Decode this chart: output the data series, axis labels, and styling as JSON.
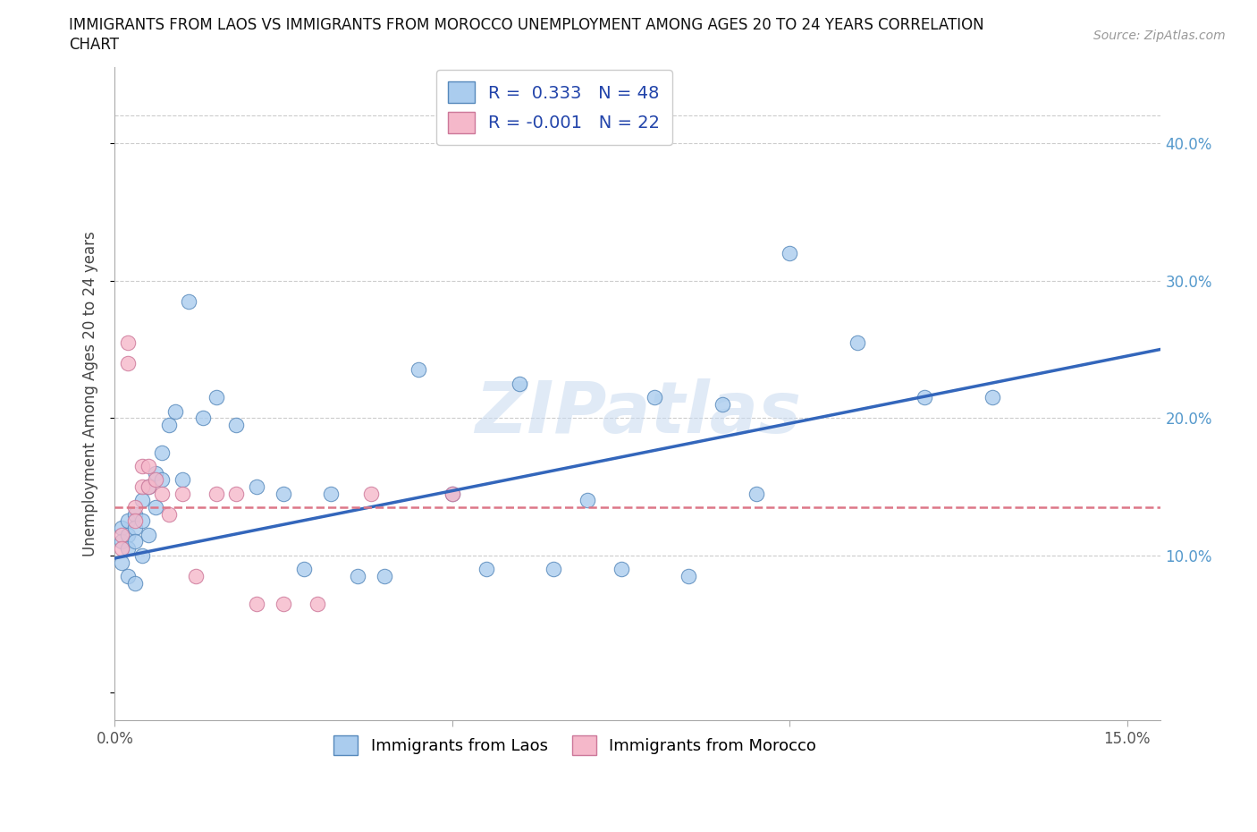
{
  "title_line1": "IMMIGRANTS FROM LAOS VS IMMIGRANTS FROM MOROCCO UNEMPLOYMENT AMONG AGES 20 TO 24 YEARS CORRELATION",
  "title_line2": "CHART",
  "source": "Source: ZipAtlas.com",
  "ylabel": "Unemployment Among Ages 20 to 24 years",
  "legend_label1": "Immigrants from Laos",
  "legend_label2": "Immigrants from Morocco",
  "R1": "0.333",
  "N1": "48",
  "R2": "-0.001",
  "N2": "22",
  "xlim": [
    0.0,
    0.155
  ],
  "ylim": [
    -0.02,
    0.455
  ],
  "xtick_positions": [
    0.0,
    0.05,
    0.1,
    0.15
  ],
  "xtick_labels": [
    "0.0%",
    "",
    "",
    "15.0%"
  ],
  "ytick_positions": [
    0.1,
    0.2,
    0.3,
    0.4
  ],
  "ytick_labels_right": [
    "10.0%",
    "20.0%",
    "30.0%",
    "40.0%"
  ],
  "color_laos_fill": "#aaccee",
  "color_laos_edge": "#5588bb",
  "color_morocco_fill": "#f5b8ca",
  "color_morocco_edge": "#cc7799",
  "color_laos_line": "#3366bb",
  "color_morocco_line": "#dd7788",
  "watermark_color": "#c8daf0",
  "grid_color": "#cccccc",
  "laos_x": [
    0.001,
    0.001,
    0.001,
    0.002,
    0.002,
    0.002,
    0.002,
    0.003,
    0.003,
    0.003,
    0.003,
    0.004,
    0.004,
    0.004,
    0.005,
    0.005,
    0.006,
    0.006,
    0.007,
    0.007,
    0.008,
    0.009,
    0.01,
    0.011,
    0.013,
    0.015,
    0.018,
    0.021,
    0.025,
    0.028,
    0.032,
    0.036,
    0.04,
    0.045,
    0.05,
    0.055,
    0.06,
    0.065,
    0.07,
    0.075,
    0.08,
    0.085,
    0.09,
    0.095,
    0.1,
    0.11,
    0.12,
    0.13
  ],
  "laos_y": [
    0.12,
    0.11,
    0.095,
    0.125,
    0.115,
    0.105,
    0.085,
    0.13,
    0.12,
    0.11,
    0.08,
    0.14,
    0.125,
    0.1,
    0.15,
    0.115,
    0.16,
    0.135,
    0.175,
    0.155,
    0.195,
    0.205,
    0.155,
    0.285,
    0.2,
    0.215,
    0.195,
    0.15,
    0.145,
    0.09,
    0.145,
    0.085,
    0.085,
    0.235,
    0.145,
    0.09,
    0.225,
    0.09,
    0.14,
    0.09,
    0.215,
    0.085,
    0.21,
    0.145,
    0.32,
    0.255,
    0.215,
    0.215
  ],
  "morocco_x": [
    0.001,
    0.001,
    0.002,
    0.002,
    0.003,
    0.003,
    0.004,
    0.004,
    0.005,
    0.005,
    0.006,
    0.007,
    0.008,
    0.01,
    0.012,
    0.015,
    0.018,
    0.021,
    0.025,
    0.03,
    0.038,
    0.05
  ],
  "morocco_y": [
    0.115,
    0.105,
    0.255,
    0.24,
    0.135,
    0.125,
    0.165,
    0.15,
    0.165,
    0.15,
    0.155,
    0.145,
    0.13,
    0.145,
    0.085,
    0.145,
    0.145,
    0.065,
    0.065,
    0.065,
    0.145,
    0.145
  ],
  "laos_trend_x": [
    0.0,
    0.155
  ],
  "laos_trend_y": [
    0.098,
    0.25
  ],
  "morocco_trend_y": [
    0.135,
    0.135
  ]
}
